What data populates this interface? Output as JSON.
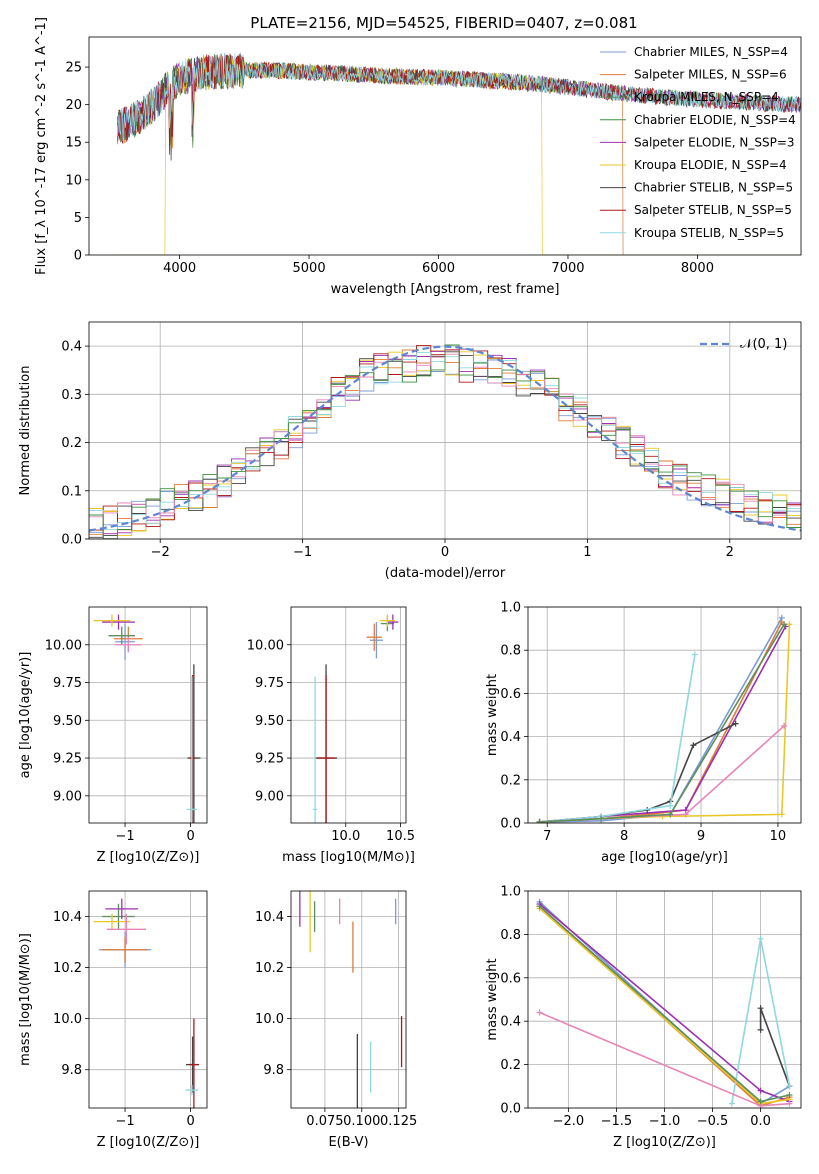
{
  "figure": {
    "title": "PLATE=2156, MJD=54525, FIBERID=0407, z=0.081"
  },
  "palette": {
    "Chabrier MILES": "#7b9bd6",
    "Salpeter MILES": "#e07b39",
    "Kroupa MILES": "#5c8f5c",
    "Chabrier ELODIE": "#3f8f3f",
    "Salpeter ELODIE": "#9b30b0",
    "Kroupa ELODIE": "#e8c829",
    "Chabrier STELIB": "#444444",
    "Salpeter STELIB": "#b01818",
    "Kroupa STELIB": "#8fd8e0",
    "residual_extra": "#e884b8",
    "gauss": "#5f86d2"
  },
  "chart_data": [
    {
      "id": "spectrum",
      "type": "line",
      "xlabel": "wavelength [Angstrom, rest frame]",
      "ylabel": "Flux [f_λ 10^-17 erg cm^-2 s^-1 A^-1]",
      "xlim": [
        3300,
        8800
      ],
      "ylim": [
        0,
        29
      ],
      "xticks": [
        4000,
        5000,
        6000,
        7000,
        8000
      ],
      "yticks": [
        0,
        5,
        10,
        15,
        20,
        25
      ],
      "legend": [
        {
          "label": "Chabrier MILES, N_SSP=4",
          "color_key": "Chabrier MILES"
        },
        {
          "label": "Salpeter MILES, N_SSP=6",
          "color_key": "Salpeter MILES"
        },
        {
          "label": "Kroupa MILES, N_SSP=4",
          "color_key": "Kroupa MILES"
        },
        {
          "label": "Chabrier ELODIE, N_SSP=4",
          "color_key": "Chabrier ELODIE"
        },
        {
          "label": "Salpeter ELODIE, N_SSP=3",
          "color_key": "Salpeter ELODIE"
        },
        {
          "label": "Kroupa ELODIE, N_SSP=4",
          "color_key": "Kroupa ELODIE"
        },
        {
          "label": "Chabrier STELIB, N_SSP=5",
          "color_key": "Chabrier STELIB"
        },
        {
          "label": "Salpeter STELIB, N_SSP=5",
          "color_key": "Salpeter STELIB"
        },
        {
          "label": "Kroupa STELIB, N_SSP=5",
          "color_key": "Kroupa STELIB"
        }
      ],
      "legend_position": "right",
      "continuum": {
        "x": [
          3520,
          3600,
          3700,
          3800,
          3900,
          4000,
          4100,
          4200,
          4400,
          4600,
          4800,
          5000,
          5200,
          5400,
          5600,
          5800,
          6000,
          6200,
          6400,
          6600,
          6800,
          7000,
          7200,
          7400,
          7600,
          7800,
          8000,
          8200,
          8400,
          8600,
          8800
        ],
        "y": [
          17,
          17.5,
          18.5,
          20,
          22,
          23.5,
          24,
          24.3,
          24.5,
          24.6,
          24.5,
          24.3,
          24.2,
          24,
          23.8,
          23.7,
          23.6,
          23.4,
          23.2,
          23,
          22.7,
          22.3,
          21.9,
          21.5,
          21.2,
          20.9,
          20.7,
          20.5,
          20.3,
          20.1,
          20
        ]
      },
      "model_edges": [
        {
          "color_key": "Salpeter MILES",
          "x_start": 3520,
          "x_end": 7420
        },
        {
          "color_key": "Kroupa ELODIE",
          "x_start": 3890,
          "x_end": 6800
        },
        {
          "color_key": "Chabrier STELIB",
          "x_start": 3520,
          "x_end": 8800
        }
      ]
    },
    {
      "id": "residuals",
      "type": "step",
      "xlabel": "(data-model)/error",
      "ylabel": "Normed distribution",
      "xlim": [
        -2.5,
        2.5
      ],
      "ylim": [
        0,
        0.45
      ],
      "xticks": [
        -2,
        -1,
        0,
        1,
        2
      ],
      "yticks": [
        0.0,
        0.1,
        0.2,
        0.3,
        0.4
      ],
      "grid": true,
      "legend": [
        {
          "label": "𝒩(0, 1)",
          "color_key": "gauss"
        }
      ],
      "legend_position": "top-right",
      "bin_width": 0.1,
      "envelope": [
        0.03,
        0.035,
        0.04,
        0.05,
        0.06,
        0.07,
        0.08,
        0.09,
        0.1,
        0.12,
        0.14,
        0.16,
        0.18,
        0.2,
        0.22,
        0.24,
        0.27,
        0.3,
        0.32,
        0.34,
        0.35,
        0.36,
        0.36,
        0.37,
        0.37,
        0.37,
        0.36,
        0.36,
        0.35,
        0.34,
        0.33,
        0.32,
        0.3,
        0.28,
        0.26,
        0.24,
        0.22,
        0.2,
        0.18,
        0.16,
        0.14,
        0.12,
        0.11,
        0.1,
        0.09,
        0.08,
        0.07,
        0.065,
        0.06,
        0.05
      ]
    },
    {
      "id": "age_vs_Z",
      "type": "scatter",
      "xlabel": "Z [log10(Z/Z⊙)]",
      "ylabel": "age  [log10(age/yr)]",
      "xlim": [
        -1.55,
        0.25
      ],
      "ylim": [
        8.82,
        10.25
      ],
      "xticks": [
        -1,
        0
      ],
      "yticks": [
        9.0,
        9.25,
        9.5,
        9.75,
        10.0
      ],
      "grid": true,
      "points": [
        {
          "color_key": "Chabrier MILES",
          "x": -1.0,
          "y": 10.02,
          "xerr": 0.15,
          "yerr": 0.12
        },
        {
          "color_key": "Salpeter MILES",
          "x": -0.95,
          "y": 10.04,
          "xerr": 0.22,
          "yerr": 0.08
        },
        {
          "color_key": "Kroupa MILES",
          "x": -1.05,
          "y": 10.06,
          "xerr": 0.2,
          "yerr": 0.06
        },
        {
          "color_key": "Salpeter ELODIE",
          "x": -1.1,
          "y": 10.15,
          "xerr": 0.25,
          "yerr": 0.05
        },
        {
          "color_key": "Kroupa ELODIE",
          "x": -1.2,
          "y": 10.16,
          "xerr": 0.28,
          "yerr": 0.04
        },
        {
          "color_key": "Chabrier STELIB",
          "x": 0.05,
          "y": 9.25,
          "xerr": 0.1,
          "yerr": 0.62
        },
        {
          "color_key": "Salpeter STELIB",
          "x": 0.03,
          "y": 9.25,
          "xerr": 0.05,
          "yerr": 0.55
        },
        {
          "color_key": "Kroupa STELIB",
          "x": 0.02,
          "y": 8.91,
          "xerr": 0.08,
          "yerr": 0.88
        },
        {
          "color_key": "residual_extra",
          "x": -0.95,
          "y": 10.0,
          "xerr": 0.2,
          "yerr": 0.05
        }
      ]
    },
    {
      "id": "age_vs_mass",
      "type": "scatter",
      "xlabel": "mass [log10(M/M⊙)]",
      "ylabel": "",
      "xlim": [
        9.5,
        10.55
      ],
      "ylim": [
        8.82,
        10.25
      ],
      "xticks": [
        10.0,
        10.5
      ],
      "yticks": [
        9.0,
        9.25,
        9.5,
        9.75,
        10.0
      ],
      "grid": true,
      "points": [
        {
          "color_key": "Chabrier MILES",
          "x": 10.28,
          "y": 10.03,
          "xerr": 0.06,
          "yerr": 0.12
        },
        {
          "color_key": "Salpeter MILES",
          "x": 10.26,
          "y": 10.05,
          "xerr": 0.07,
          "yerr": 0.09
        },
        {
          "color_key": "Kroupa MILES",
          "x": 10.38,
          "y": 10.14,
          "xerr": 0.06,
          "yerr": 0.05
        },
        {
          "color_key": "Salpeter ELODIE",
          "x": 10.43,
          "y": 10.15,
          "xerr": 0.05,
          "yerr": 0.05
        },
        {
          "color_key": "Kroupa ELODIE",
          "x": 10.38,
          "y": 10.16,
          "xerr": 0.07,
          "yerr": 0.04
        },
        {
          "color_key": "Chabrier STELIB",
          "x": 9.82,
          "y": 9.25,
          "xerr": 0.1,
          "yerr": 0.62
        },
        {
          "color_key": "Salpeter STELIB",
          "x": 9.82,
          "y": 9.25,
          "xerr": 0.08,
          "yerr": 0.55
        },
        {
          "color_key": "Kroupa STELIB",
          "x": 9.72,
          "y": 8.91,
          "xerr": 0.02,
          "yerr": 0.88
        }
      ]
    },
    {
      "id": "massweight_vs_age",
      "type": "line",
      "xlabel": "age  [log10(age/yr)]",
      "ylabel": "mass weight",
      "xlim": [
        6.75,
        10.3
      ],
      "ylim": [
        0,
        1.0
      ],
      "xticks": [
        7,
        8,
        9,
        10
      ],
      "yticks": [
        0.0,
        0.2,
        0.4,
        0.6,
        0.8,
        1.0
      ],
      "grid": true,
      "series": [
        {
          "color_key": "Chabrier MILES",
          "x": [
            6.9,
            7.7,
            8.6,
            10.05
          ],
          "y": [
            0.005,
            0.01,
            0.04,
            0.95
          ]
        },
        {
          "color_key": "Salpeter MILES",
          "x": [
            6.9,
            7.7,
            8.3,
            8.8,
            10.05
          ],
          "y": [
            0.005,
            0.02,
            0.04,
            0.06,
            0.93
          ]
        },
        {
          "color_key": "Salpeter ELODIE",
          "x": [
            6.9,
            7.7,
            8.8,
            10.1
          ],
          "y": [
            0.005,
            0.03,
            0.06,
            0.91
          ]
        },
        {
          "color_key": "Kroupa ELODIE",
          "x": [
            6.9,
            7.7,
            8.5,
            10.05,
            10.15
          ],
          "y": [
            0.005,
            0.02,
            0.03,
            0.04,
            0.92
          ]
        },
        {
          "color_key": "Chabrier STELIB",
          "x": [
            6.9,
            7.7,
            8.3,
            8.6,
            8.9,
            9.45
          ],
          "y": [
            0.005,
            0.03,
            0.06,
            0.1,
            0.36,
            0.46
          ]
        },
        {
          "color_key": "Kroupa STELIB",
          "x": [
            6.9,
            7.7,
            8.6,
            8.92
          ],
          "y": [
            0.005,
            0.03,
            0.08,
            0.78
          ]
        },
        {
          "color_key": "residual_extra",
          "x": [
            6.9,
            7.7,
            8.8,
            10.08
          ],
          "y": [
            0.005,
            0.02,
            0.04,
            0.45
          ]
        },
        {
          "color_key": "Kroupa MILES",
          "x": [
            6.9,
            7.7,
            8.6,
            10.08
          ],
          "y": [
            0.005,
            0.02,
            0.04,
            0.92
          ]
        }
      ]
    },
    {
      "id": "mass_vs_Z",
      "type": "scatter",
      "xlabel": "Z [log10(Z/Z⊙)]",
      "ylabel": "mass [log10(M/M⊙)]",
      "xlim": [
        -1.55,
        0.25
      ],
      "ylim": [
        9.65,
        10.5
      ],
      "xticks": [
        -1,
        0
      ],
      "yticks": [
        9.8,
        10.0,
        10.2,
        10.4
      ],
      "grid": true,
      "points": [
        {
          "color_key": "Chabrier MILES",
          "x": -1.0,
          "y": 10.27,
          "xerr": 0.4,
          "yerr": 0.07
        },
        {
          "color_key": "Salpeter MILES",
          "x": -1.0,
          "y": 10.27,
          "xerr": 0.35,
          "yerr": 0.05
        },
        {
          "color_key": "Kroupa MILES",
          "x": -1.1,
          "y": 10.4,
          "xerr": 0.25,
          "yerr": 0.05
        },
        {
          "color_key": "Salpeter ELODIE",
          "x": -1.05,
          "y": 10.43,
          "xerr": 0.25,
          "yerr": 0.04
        },
        {
          "color_key": "Kroupa ELODIE",
          "x": -1.2,
          "y": 10.38,
          "xerr": 0.28,
          "yerr": 0.03
        },
        {
          "color_key": "Chabrier STELIB",
          "x": 0.03,
          "y": 9.82,
          "xerr": 0.1,
          "yerr": 0.11
        },
        {
          "color_key": "Salpeter STELIB",
          "x": 0.05,
          "y": 9.82,
          "xerr": 0.07,
          "yerr": 0.18
        },
        {
          "color_key": "Kroupa STELIB",
          "x": 0.02,
          "y": 9.72,
          "xerr": 0.1,
          "yerr": 0.02
        },
        {
          "color_key": "residual_extra",
          "x": -0.98,
          "y": 10.35,
          "xerr": 0.3,
          "yerr": 0.06
        }
      ]
    },
    {
      "id": "mass_vs_ebv",
      "type": "scatter",
      "xlabel": "E(B-V)",
      "ylabel": "",
      "xlim": [
        0.052,
        0.13
      ],
      "ylim": [
        9.65,
        10.5
      ],
      "xticks": [
        0.075,
        0.1,
        0.125
      ],
      "xticklabels": [
        "0.075",
        "0.100",
        "0.125"
      ],
      "yticks": [
        9.8,
        10.0,
        10.2,
        10.4
      ],
      "grid": true,
      "points": [
        {
          "color_key": "Salpeter ELODIE",
          "x": 0.058,
          "y": 10.43,
          "yerr": 0.07
        },
        {
          "color_key": "Kroupa ELODIE",
          "x": 0.065,
          "y": 10.38,
          "yerr": 0.12
        },
        {
          "color_key": "Kroupa MILES",
          "x": 0.068,
          "y": 10.4,
          "yerr": 0.06
        },
        {
          "color_key": "residual_extra",
          "x": 0.085,
          "y": 10.42,
          "yerr": 0.05
        },
        {
          "color_key": "Salpeter MILES",
          "x": 0.094,
          "y": 10.28,
          "yerr": 0.1
        },
        {
          "color_key": "Chabrier STELIB",
          "x": 0.097,
          "y": 9.76,
          "yerr": 0.18
        },
        {
          "color_key": "Kroupa STELIB",
          "x": 0.106,
          "y": 9.81,
          "yerr": 0.1
        },
        {
          "color_key": "Salpeter STELIB",
          "x": 0.127,
          "y": 9.91,
          "yerr": 0.1
        },
        {
          "color_key": "Chabrier MILES",
          "x": 0.123,
          "y": 10.42,
          "yerr": 0.05
        }
      ]
    },
    {
      "id": "massweight_vs_Z",
      "type": "line",
      "xlabel": "Z [log10(Z/Z⊙)]",
      "ylabel": "mass weight",
      "xlim": [
        -2.42,
        0.42
      ],
      "ylim": [
        0,
        1.0
      ],
      "xticks": [
        -2.0,
        -1.5,
        -1.0,
        -0.5,
        0.0
      ],
      "yticks": [
        0.0,
        0.2,
        0.4,
        0.6,
        0.8,
        1.0
      ],
      "grid": true,
      "series": [
        {
          "color_key": "Chabrier MILES",
          "x": [
            -2.3,
            0.0,
            0.3
          ],
          "y": [
            0.95,
            0.02,
            0.1
          ]
        },
        {
          "color_key": "Salpeter MILES",
          "x": [
            -2.3,
            0.0,
            0.3
          ],
          "y": [
            0.93,
            0.01,
            0.05
          ]
        },
        {
          "color_key": "Salpeter ELODIE",
          "x": [
            -2.3,
            0.0,
            0.3
          ],
          "y": [
            0.94,
            0.08,
            0.03
          ]
        },
        {
          "color_key": "Kroupa ELODIE",
          "x": [
            -2.3,
            0.0,
            0.3
          ],
          "y": [
            0.92,
            0.02,
            0.04
          ]
        },
        {
          "color_key": "Chabrier STELIB",
          "x": [
            0.0,
            0.0,
            0.3
          ],
          "y": [
            0.36,
            0.46,
            0.1
          ]
        },
        {
          "color_key": "Kroupa STELIB",
          "x": [
            -0.3,
            0.0,
            0.3
          ],
          "y": [
            0.02,
            0.78,
            0.1
          ]
        },
        {
          "color_key": "residual_extra",
          "x": [
            -2.3,
            0.0,
            0.3
          ],
          "y": [
            0.44,
            0.01,
            0.02
          ]
        },
        {
          "color_key": "Kroupa MILES",
          "x": [
            -2.3,
            0.0,
            0.3
          ],
          "y": [
            0.93,
            0.03,
            0.06
          ]
        }
      ]
    }
  ]
}
